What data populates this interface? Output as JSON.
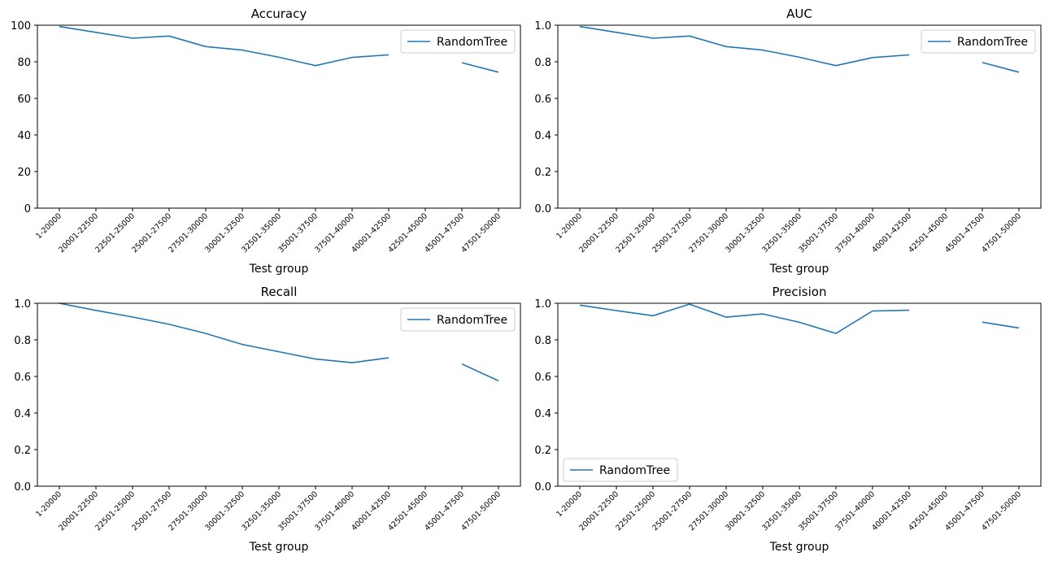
{
  "chart_data": [
    {
      "type": "line",
      "title": "Accuracy",
      "xlabel": "Test group",
      "ylabel": "",
      "categories": [
        "1-20000",
        "20001-22500",
        "22501-25000",
        "25001-27500",
        "27501-30000",
        "30001-32500",
        "32501-35000",
        "35001-37500",
        "37501-40000",
        "40001-42500",
        "42501-45000",
        "45001-47500",
        "47501-50000"
      ],
      "ylim": [
        0,
        100
      ],
      "yticks": [
        0,
        20,
        40,
        60,
        80,
        100
      ],
      "ytick_labels": [
        "0",
        "20",
        "40",
        "60",
        "80",
        "100"
      ],
      "legend_position": "upper right",
      "grid": false,
      "series": [
        {
          "name": "RandomTree",
          "color": "#1f77b4",
          "values": [
            99.3,
            96.1,
            92.9,
            94.1,
            88.3,
            86.4,
            82.5,
            77.9,
            82.4,
            83.8,
            null,
            79.5,
            74.3
          ]
        }
      ]
    },
    {
      "type": "line",
      "title": "AUC",
      "xlabel": "Test group",
      "ylabel": "",
      "categories": [
        "1-20000",
        "20001-22500",
        "22501-25000",
        "25001-27500",
        "27501-30000",
        "30001-32500",
        "32501-35000",
        "35001-37500",
        "37501-40000",
        "40001-42500",
        "42501-45000",
        "45001-47500",
        "47501-50000"
      ],
      "ylim": [
        0,
        1
      ],
      "yticks": [
        0,
        0.2,
        0.4,
        0.6,
        0.8,
        1
      ],
      "ytick_labels": [
        "0.0",
        "0.2",
        "0.4",
        "0.6",
        "0.8",
        "1.0"
      ],
      "legend_position": "upper right",
      "grid": false,
      "series": [
        {
          "name": "RandomTree",
          "color": "#1f77b4",
          "values": [
            0.993,
            0.961,
            0.929,
            0.941,
            0.883,
            0.864,
            0.825,
            0.779,
            0.823,
            0.838,
            null,
            0.796,
            0.743
          ]
        }
      ]
    },
    {
      "type": "line",
      "title": "Recall",
      "xlabel": "Test group",
      "ylabel": "",
      "categories": [
        "1-20000",
        "20001-22500",
        "22501-25000",
        "25001-27500",
        "27501-30000",
        "30001-32500",
        "32501-35000",
        "35001-37500",
        "37501-40000",
        "40001-42500",
        "42501-45000",
        "45001-47500",
        "47501-50000"
      ],
      "ylim": [
        0,
        1
      ],
      "yticks": [
        0,
        0.2,
        0.4,
        0.6,
        0.8,
        1
      ],
      "ytick_labels": [
        "0.0",
        "0.2",
        "0.4",
        "0.6",
        "0.8",
        "1.0"
      ],
      "legend_position": "upper right",
      "grid": false,
      "series": [
        {
          "name": "RandomTree",
          "color": "#1f77b4",
          "values": [
            1.0,
            0.961,
            0.925,
            0.885,
            0.835,
            0.775,
            0.735,
            0.695,
            0.675,
            0.702,
            null,
            0.668,
            0.576
          ]
        }
      ]
    },
    {
      "type": "line",
      "title": "Precision",
      "xlabel": "Test group",
      "ylabel": "",
      "categories": [
        "1-20000",
        "20001-22500",
        "22501-25000",
        "25001-27500",
        "27501-30000",
        "30001-32500",
        "32501-35000",
        "35001-37500",
        "37501-40000",
        "40001-42500",
        "42501-45000",
        "45001-47500",
        "47501-50000"
      ],
      "ylim": [
        0,
        1
      ],
      "yticks": [
        0,
        0.2,
        0.4,
        0.6,
        0.8,
        1
      ],
      "ytick_labels": [
        "0.0",
        "0.2",
        "0.4",
        "0.6",
        "0.8",
        "1.0"
      ],
      "legend_position": "lower left",
      "grid": false,
      "series": [
        {
          "name": "RandomTree",
          "color": "#1f77b4",
          "values": [
            0.99,
            0.96,
            0.932,
            0.995,
            0.924,
            0.942,
            0.896,
            0.835,
            0.958,
            0.962,
            null,
            0.897,
            0.865
          ]
        }
      ]
    }
  ]
}
